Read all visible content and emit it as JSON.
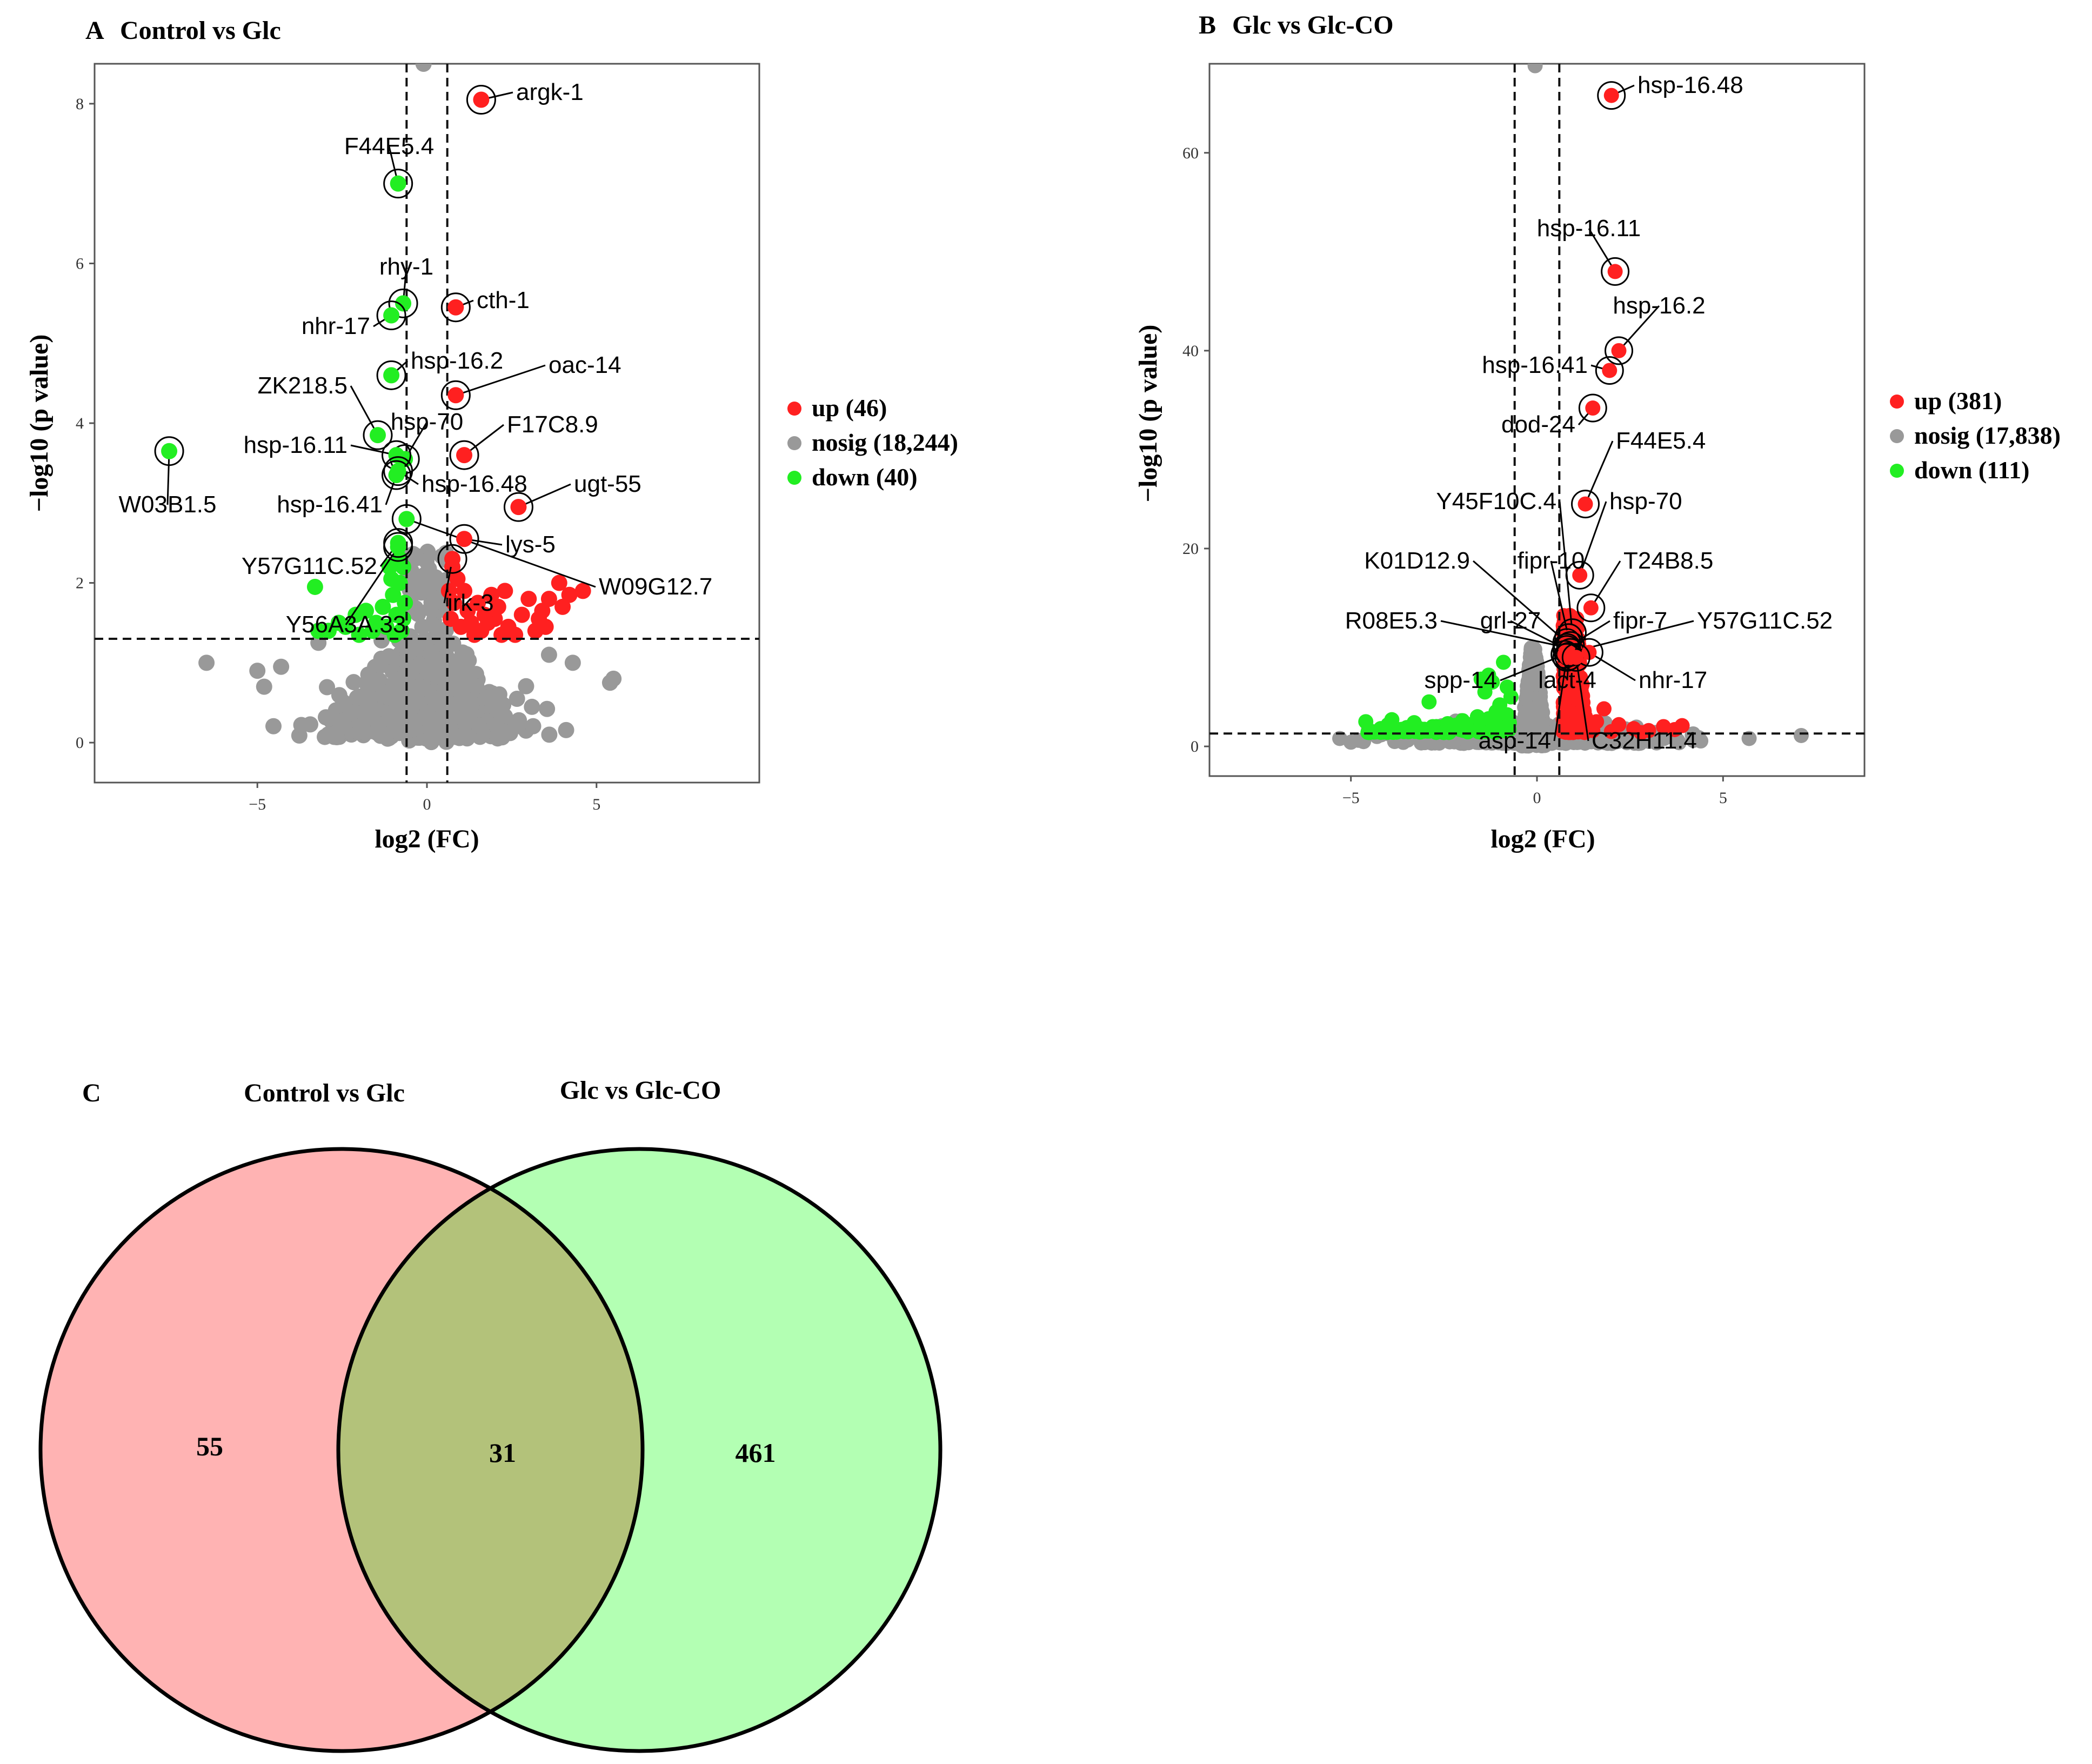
{
  "chart_data": [
    {
      "panel": "A",
      "type": "scatter",
      "title": "Control vs Glc",
      "xlabel": "log2 (FC)",
      "ylabel": "−log10 (p value)",
      "xlim": [
        -9.8,
        9.8
      ],
      "ylim": [
        -0.5,
        8.5
      ],
      "xticks": [
        -5,
        0,
        5
      ],
      "yticks": [
        0,
        2,
        4,
        6,
        8
      ],
      "threshold_x": [
        -0.6,
        0.6
      ],
      "threshold_y": 1.3,
      "legend": [
        {
          "label": "up (46)",
          "color": "#ff2020"
        },
        {
          "label": "nosig (18,244)",
          "color": "#999999"
        },
        {
          "label": "down (40)",
          "color": "#22ee22"
        }
      ],
      "labeled_genes": [
        {
          "gene": "argk-1",
          "x": 1.6,
          "y": 8.05,
          "group": "up"
        },
        {
          "gene": "F44E5.4",
          "x": -0.85,
          "y": 7.0,
          "group": "down"
        },
        {
          "gene": "rhy-1",
          "x": -0.7,
          "y": 5.5,
          "group": "down"
        },
        {
          "gene": "cth-1",
          "x": 0.85,
          "y": 5.45,
          "group": "up"
        },
        {
          "gene": "nhr-17",
          "x": -1.05,
          "y": 5.35,
          "group": "down"
        },
        {
          "gene": "hsp-16.2",
          "x": -1.05,
          "y": 4.6,
          "group": "down"
        },
        {
          "gene": "oac-14",
          "x": 0.85,
          "y": 4.35,
          "group": "up"
        },
        {
          "gene": "ZK218.5",
          "x": -1.45,
          "y": 3.85,
          "group": "down"
        },
        {
          "gene": "F17C8.9",
          "x": 1.1,
          "y": 3.6,
          "group": "up"
        },
        {
          "gene": "hsp-70",
          "x": -0.65,
          "y": 3.55,
          "group": "down"
        },
        {
          "gene": "hsp-16.11",
          "x": -0.9,
          "y": 3.6,
          "group": "down"
        },
        {
          "gene": "W03B1.5",
          "x": -7.6,
          "y": 3.65,
          "group": "down"
        },
        {
          "gene": "hsp-16.48",
          "x": -0.85,
          "y": 3.4,
          "group": "down"
        },
        {
          "gene": "hsp-16.41",
          "x": -0.9,
          "y": 3.35,
          "group": "down"
        },
        {
          "gene": "ugt-55",
          "x": 2.7,
          "y": 2.95,
          "group": "up"
        },
        {
          "gene": "W09G12.7",
          "x": -0.6,
          "y": 2.8,
          "group": "down"
        },
        {
          "gene": "lys-5",
          "x": 1.1,
          "y": 2.55,
          "group": "up"
        },
        {
          "gene": "Y57G11C.52",
          "x": -0.85,
          "y": 2.5,
          "group": "down"
        },
        {
          "gene": "irk-3",
          "x": 0.75,
          "y": 2.3,
          "group": "up"
        },
        {
          "gene": "Y56A3A.33",
          "x": -0.85,
          "y": 2.45,
          "group": "down"
        }
      ],
      "label_texts": [
        "argk-1",
        "F44E5.4",
        "rhy-1",
        "cth-1",
        "nhr-17",
        "hsp-16.2",
        "oac-14",
        "ZK218.5",
        "F17C8.9",
        "hsp-70",
        "hsp-16.11",
        "W03B1.5",
        "hsp-16.48",
        "hsp-16.41",
        "ugt-55",
        "W09G12.7",
        "lys-5",
        "Y57G11C.52",
        "irk-3",
        "Y56A3A.33"
      ],
      "up_points": [
        [
          0.9,
          2.05
        ],
        [
          1.1,
          1.9
        ],
        [
          1.5,
          1.75
        ],
        [
          1.9,
          1.85
        ],
        [
          2.3,
          1.9
        ],
        [
          2.8,
          1.6
        ],
        [
          3.0,
          1.8
        ],
        [
          3.4,
          1.65
        ],
        [
          3.6,
          1.8
        ],
        [
          3.9,
          2.0
        ],
        [
          4.2,
          1.85
        ],
        [
          4.6,
          1.9
        ],
        [
          0.7,
          1.55
        ],
        [
          1.0,
          1.45
        ],
        [
          1.3,
          1.5
        ],
        [
          1.6,
          1.4
        ],
        [
          2.0,
          1.55
        ],
        [
          2.4,
          1.45
        ],
        [
          2.6,
          1.35
        ],
        [
          3.2,
          1.4
        ],
        [
          3.5,
          1.45
        ],
        [
          0.8,
          1.75
        ],
        [
          1.2,
          1.65
        ],
        [
          1.7,
          1.6
        ],
        [
          2.1,
          1.7
        ],
        [
          0.65,
          1.9
        ],
        [
          1.4,
          1.35
        ],
        [
          0.75,
          2.2
        ],
        [
          2.2,
          1.35
        ],
        [
          3.3,
          1.55
        ],
        [
          4.0,
          1.7
        ],
        [
          1.8,
          1.5
        ]
      ],
      "down_points": [
        [
          -3.3,
          1.95
        ],
        [
          -3.2,
          1.4
        ],
        [
          -2.9,
          1.4
        ],
        [
          -2.6,
          1.5
        ],
        [
          -2.4,
          1.45
        ],
        [
          -2.1,
          1.6
        ],
        [
          -1.8,
          1.65
        ],
        [
          -1.5,
          1.5
        ],
        [
          -1.3,
          1.7
        ],
        [
          -1.0,
          1.85
        ],
        [
          -0.8,
          2.0
        ],
        [
          -0.7,
          1.55
        ],
        [
          -0.65,
          1.75
        ],
        [
          -0.75,
          1.4
        ],
        [
          -0.9,
          1.6
        ],
        [
          -1.1,
          2.2
        ],
        [
          -1.2,
          1.45
        ],
        [
          -0.7,
          2.2
        ],
        [
          -1.05,
          2.05
        ],
        [
          -0.95,
          1.35
        ],
        [
          -0.8,
          2.3
        ],
        [
          -1.6,
          1.4
        ],
        [
          -2.0,
          1.35
        ]
      ]
    },
    {
      "panel": "B",
      "type": "scatter",
      "title": "Glc vs Glc-CO",
      "xlabel": "log2 (FC)",
      "ylabel": "−log10 (p value)",
      "xlim": [
        -8.8,
        8.8
      ],
      "ylim": [
        -3,
        69
      ],
      "xticks": [
        -5,
        0,
        5
      ],
      "yticks": [
        0,
        20,
        40,
        60
      ],
      "threshold_x": [
        -0.6,
        0.6
      ],
      "threshold_y": 1.3,
      "legend": [
        {
          "label": "up (381)",
          "color": "#ff2020"
        },
        {
          "label": "nosig (17,838)",
          "color": "#999999"
        },
        {
          "label": "down (111)",
          "color": "#22ee22"
        }
      ],
      "labeled_genes": [
        {
          "gene": "hsp-16.48",
          "x": 2.0,
          "y": 65.8,
          "group": "up"
        },
        {
          "gene": "hsp-16.11",
          "x": 2.1,
          "y": 48.0,
          "group": "up"
        },
        {
          "gene": "hsp-16.2",
          "x": 2.2,
          "y": 40.0,
          "group": "up"
        },
        {
          "gene": "hsp-16.41",
          "x": 1.95,
          "y": 38.0,
          "group": "up"
        },
        {
          "gene": "dod-24",
          "x": 1.5,
          "y": 34.2,
          "group": "up"
        },
        {
          "gene": "F44E5.4",
          "x": 1.3,
          "y": 24.5,
          "group": "up"
        },
        {
          "gene": "Y45F10C.4",
          "x": 0.95,
          "y": 11.5,
          "group": "up"
        },
        {
          "gene": "hsp-70",
          "x": 1.15,
          "y": 17.3,
          "group": "up"
        },
        {
          "gene": "T24B8.5",
          "x": 1.45,
          "y": 14.0,
          "group": "up"
        },
        {
          "gene": "K01D12.9",
          "x": 0.8,
          "y": 10.5,
          "group": "up"
        },
        {
          "gene": "fipr-10",
          "x": 0.85,
          "y": 11.0,
          "group": "up"
        },
        {
          "gene": "R08E5.3",
          "x": 0.8,
          "y": 10.0,
          "group": "up"
        },
        {
          "gene": "grl-27",
          "x": 0.8,
          "y": 9.8,
          "group": "up"
        },
        {
          "gene": "fipr-7",
          "x": 0.9,
          "y": 10.2,
          "group": "up"
        },
        {
          "gene": "Y57G11C.52",
          "x": 0.9,
          "y": 9.5,
          "group": "up"
        },
        {
          "gene": "spp-14",
          "x": 0.75,
          "y": 9.3,
          "group": "up"
        },
        {
          "gene": "lact-4",
          "x": 0.85,
          "y": 9.1,
          "group": "up"
        },
        {
          "gene": "nhr-17",
          "x": 1.4,
          "y": 9.5,
          "group": "up"
        },
        {
          "gene": "asp-14",
          "x": 0.8,
          "y": 9.0,
          "group": "up"
        },
        {
          "gene": "C32H11.4",
          "x": 1.05,
          "y": 9.0,
          "group": "up"
        }
      ],
      "label_texts": [
        "hsp-16.48",
        "hsp-16.11",
        "hsp-16.2",
        "hsp-16.41",
        "dod-24",
        "F44E5.4",
        "Y45F10C.4",
        "hsp-70",
        "T24B8.5",
        "K01D12.9",
        "fipr-10",
        "R08E5.3",
        "grl-27",
        "fipr-7",
        "Y57G11C.52",
        "spp-14",
        "lact-4",
        "nhr-17",
        "asp-14",
        "C32H11.4"
      ],
      "down_points": [
        [
          -4.6,
          2.5
        ],
        [
          -4.5,
          1.5
        ],
        [
          -4.2,
          1.8
        ],
        [
          -4.0,
          2.2
        ],
        [
          -3.8,
          1.6
        ],
        [
          -3.5,
          1.9
        ],
        [
          -3.3,
          2.4
        ],
        [
          -3.1,
          1.7
        ],
        [
          -2.9,
          4.5
        ],
        [
          -2.8,
          2.0
        ],
        [
          -2.6,
          1.6
        ],
        [
          -2.4,
          2.3
        ],
        [
          -2.2,
          1.8
        ],
        [
          -2.0,
          2.6
        ],
        [
          -1.8,
          1.9
        ],
        [
          -1.6,
          3.0
        ],
        [
          -1.5,
          2.2
        ],
        [
          -1.4,
          5.5
        ],
        [
          -1.3,
          2.8
        ],
        [
          -1.2,
          6.5
        ],
        [
          -1.1,
          3.5
        ],
        [
          -1.0,
          4.2
        ],
        [
          -0.9,
          2.5
        ],
        [
          -0.8,
          3.2
        ],
        [
          -0.7,
          5.0
        ],
        [
          -1.5,
          6.8
        ],
        [
          -1.3,
          7.2
        ],
        [
          -0.9,
          8.5
        ],
        [
          -1.9,
          2.0
        ],
        [
          -3.9,
          2.7
        ],
        [
          -2.5,
          1.4
        ],
        [
          -0.8,
          6.0
        ]
      ],
      "up_points": [
        [
          1.8,
          3.8
        ],
        [
          2.2,
          2.2
        ],
        [
          2.6,
          1.8
        ],
        [
          3.0,
          1.6
        ],
        [
          3.4,
          2.0
        ],
        [
          3.7,
          1.7
        ],
        [
          3.9,
          2.1
        ],
        [
          2.0,
          1.5
        ],
        [
          1.6,
          2.5
        ],
        [
          1.3,
          3.0
        ],
        [
          1.0,
          3.5
        ],
        [
          0.8,
          2.2
        ],
        [
          0.9,
          5.0
        ],
        [
          1.1,
          6.0
        ],
        [
          0.8,
          8.0
        ],
        [
          1.2,
          4.5
        ],
        [
          1.5,
          1.6
        ],
        [
          2.8,
          1.4
        ],
        [
          0.7,
          1.5
        ],
        [
          1.0,
          7.0
        ]
      ],
      "grey_points": [
        [
          -5.3,
          0.8
        ],
        [
          -4.3,
          1.0
        ],
        [
          -2.2,
          0.6
        ],
        [
          5.7,
          0.8
        ],
        [
          7.1,
          1.1
        ],
        [
          4.2,
          0.6
        ],
        [
          -0.05,
          68.8
        ]
      ]
    },
    {
      "panel": "C",
      "type": "venn",
      "sets": [
        {
          "label": "Control vs Glc",
          "color": "#ffb3b3"
        },
        {
          "label": "Glc vs Glc-CO",
          "color": "#b3ffb3"
        }
      ],
      "overlap_color": "#b3c27a",
      "regions": {
        "only_a": "55",
        "both": "31",
        "only_b": "461"
      }
    }
  ],
  "panel_letters": [
    "A",
    "B",
    "C"
  ]
}
